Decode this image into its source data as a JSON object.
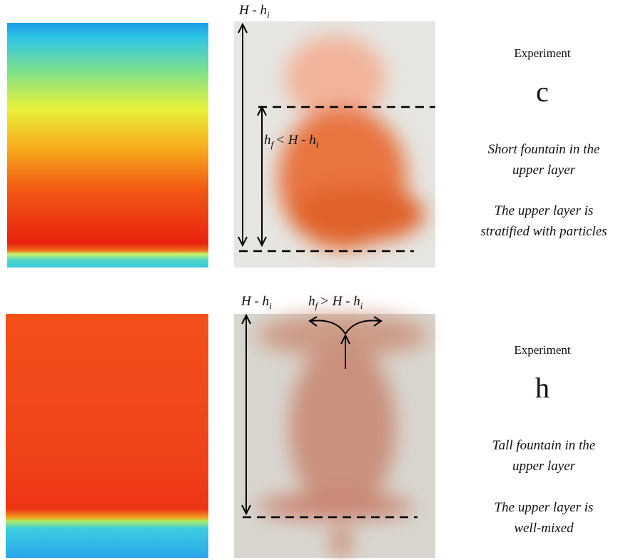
{
  "panels": [
    {
      "top_label": {
        "main": "H - h",
        "sub": "i"
      },
      "fountain_label": {
        "a": "h",
        "a_sub": "f",
        "b": "< H - h",
        "b_sub": "i"
      },
      "experiment_label": "Experiment",
      "experiment_id": "c",
      "description": [
        [
          "Short fountain in the",
          "upper layer"
        ],
        [
          "The upper layer is",
          "stratified with particles"
        ]
      ]
    },
    {
      "top_label": {
        "main": "H - h",
        "sub": "i"
      },
      "fountain_label": {
        "a": "h",
        "a_sub": "f",
        "b": "> H - h",
        "b_sub": "i"
      },
      "experiment_label": "Experiment",
      "experiment_id": "h",
      "description": [
        [
          "Tall fountain in the",
          "upper layer"
        ],
        [
          "The upper layer is",
          "well-mixed"
        ]
      ]
    }
  ]
}
